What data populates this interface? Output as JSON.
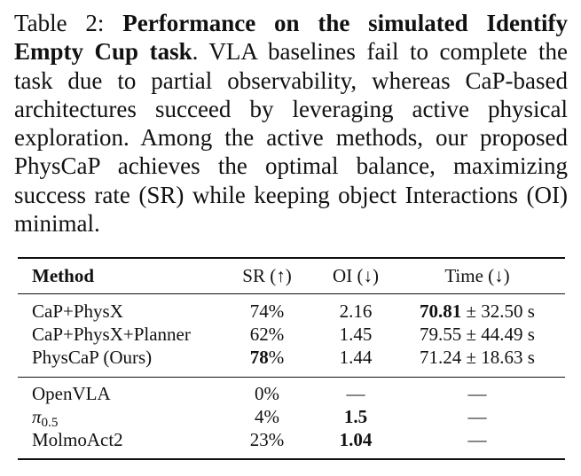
{
  "caption": {
    "label": "Table 2:",
    "title": "Performance on the simulated Identify Empty Cup task",
    "body": ". VLA baselines fail to complete the task due to partial observability, whereas CaP-based architectures succeed by leveraging active physical exploration. Among the active methods, our proposed PhysCaP achieves the optimal balance, maximizing success rate (SR) while keeping object Interactions (OI) minimal."
  },
  "table": {
    "headers": [
      "Method",
      "SR (↑)",
      "OI (↓)",
      "Time (↓)"
    ],
    "group1": [
      {
        "method": "CaP+PhysX",
        "sr": "74%",
        "oi": "2.16",
        "time_bold": "70.81",
        "time_rest": " ± 32.50 s"
      },
      {
        "method": "CaP+PhysX+Planner",
        "sr": "62%",
        "oi": "1.45",
        "time_bold": "",
        "time_rest": "79.55 ± 44.49 s"
      },
      {
        "method": "PhysCaP (Ours)",
        "sr_bold": "78",
        "sr_rest": "%",
        "oi": "1.44",
        "time_bold": "",
        "time_rest": "71.24 ± 18.63 s"
      }
    ],
    "group2": [
      {
        "method": "OpenVLA",
        "sr": "0%",
        "oi": "—",
        "time": "—"
      },
      {
        "method_sym": "π",
        "method_sub": "0.5",
        "sr": "4%",
        "oi_bold": "1.5",
        "time": "—"
      },
      {
        "method": "MolmoAct2",
        "sr": "23%",
        "oi_bold": "1.04",
        "time": "—"
      }
    ]
  }
}
